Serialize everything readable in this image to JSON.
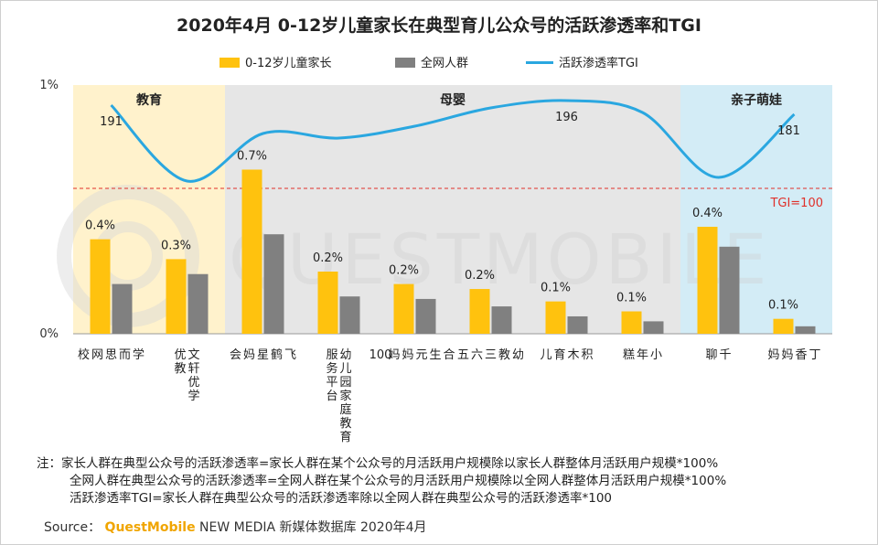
{
  "chart_data": {
    "type": "bar",
    "title": "2020年4月 0-12岁儿童家长在典型育儿公众号的活跃渗透率和TGI",
    "categories": [
      "学而思网校",
      "文轩优学优教",
      "飞鹤星妈会",
      "幼儿园家庭教育服务平台",
      "合生元妈妈100",
      "幼教三六五",
      "积木育儿",
      "小年糕",
      "千聊",
      "丁香妈妈"
    ],
    "category_columns": [
      [
        "学",
        "而",
        "思",
        "网",
        "校"
      ],
      [
        "文轩优学",
        "优教"
      ],
      [
        "飞",
        "鹤",
        "星",
        "妈",
        "会"
      ],
      [
        "幼儿园家庭教育",
        "服务平台"
      ],
      [
        "合",
        "生",
        "元",
        "妈",
        "妈",
        "100"
      ],
      [
        "幼",
        "教",
        "三",
        "六",
        "五"
      ],
      [
        "积",
        "木",
        "育",
        "儿"
      ],
      [
        "小",
        "年",
        "糕"
      ],
      [
        "千",
        "聊"
      ],
      [
        "丁",
        "香",
        "妈",
        "妈"
      ]
    ],
    "series": [
      {
        "name": "0-12岁儿童家长",
        "type": "bar",
        "color": "#FFC20E",
        "values": [
          0.0038,
          0.003,
          0.0066,
          0.0025,
          0.002,
          0.0018,
          0.0013,
          0.0009,
          0.0043,
          0.0006
        ],
        "labels": [
          "0.4%",
          "0.3%",
          "0.7%",
          "0.2%",
          "0.2%",
          "0.2%",
          "0.1%",
          "0.1%",
          "0.4%",
          "0.1%"
        ]
      },
      {
        "name": "全网人群",
        "type": "bar",
        "color": "#808080",
        "values": [
          0.002,
          0.0024,
          0.004,
          0.0015,
          0.0014,
          0.0011,
          0.0007,
          0.0005,
          0.0035,
          0.0003
        ]
      },
      {
        "name": "活跃渗透率TGI",
        "type": "line",
        "color": "#2AA7E0",
        "values": [
          191,
          108,
          160,
          155,
          168,
          188,
          196,
          183,
          112,
          181
        ],
        "labels": {
          "0": "191",
          "6": "196",
          "9": "181"
        }
      }
    ],
    "y_axis": {
      "ticks": [
        "0%",
        "1%"
      ],
      "range": [
        0,
        0.01
      ]
    },
    "tgi_reference": {
      "label": "TGI=100",
      "value": 100
    },
    "groups": [
      {
        "label": "教育",
        "from": 0,
        "to": 1,
        "color": "#FFF2CC"
      },
      {
        "label": "母婴",
        "from": 2,
        "to": 7,
        "color": "#E6E6E6"
      },
      {
        "label": "亲子萌娃",
        "from": 8,
        "to": 9,
        "color": "#D3ECF6"
      }
    ],
    "legend_position": "top"
  },
  "watermark": "QUESTMOBILE",
  "notes": {
    "prefix": "注：",
    "lines": [
      "家长人群在典型公众号的活跃渗透率=家长人群在某个公众号的月活跃用户规模除以家长人群整体月活跃用户规模*100%",
      "全网人群在典型公众号的活跃渗透率=全网人群在某个公众号的月活跃用户规模除以全网人群整体月活跃用户规模*100%",
      "活跃渗透率TGI=家长人群在典型公众号的活跃渗透率除以全网人群在典型公众号的活跃渗透率*100"
    ]
  },
  "source": {
    "prefix": "Source：",
    "brand": "QuestMobile",
    "rest": " NEW MEDIA 新媒体数据库 2020年4月"
  }
}
